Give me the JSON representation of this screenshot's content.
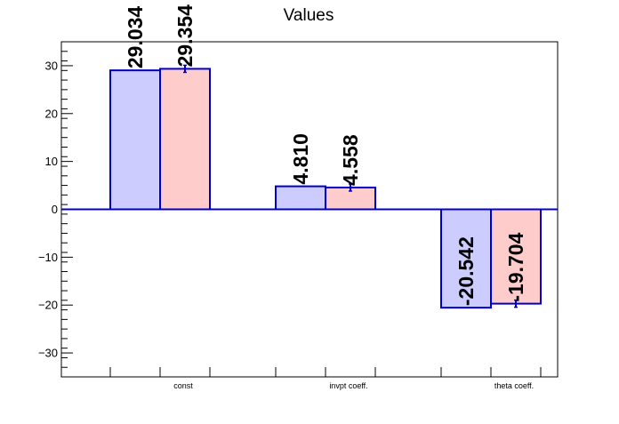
{
  "chart_data": {
    "type": "bar",
    "title": "Values",
    "xlabel": "",
    "ylabel": "",
    "categories": [
      "const",
      "invpt coeff.",
      "theta coeff."
    ],
    "series": [
      {
        "values": [
          29.034,
          4.81,
          -20.542
        ],
        "labels": [
          "29.034",
          "4.810",
          "-20.542"
        ],
        "color": "#ccccff",
        "error_bars": false
      },
      {
        "values": [
          29.354,
          4.558,
          -19.704
        ],
        "labels": [
          "29.354",
          "4.558",
          "-19.704"
        ],
        "color": "#ffcccc",
        "error_bars": true
      }
    ],
    "ylim": [
      -35,
      35
    ],
    "yticks": [
      -30,
      -20,
      -10,
      0,
      10,
      20,
      30
    ],
    "ytick_labels": [
      "−30",
      "−20",
      "−10",
      "0",
      "10",
      "20",
      "30"
    ],
    "bar_edge_color": "#0000cc",
    "grid": false,
    "legend": "none"
  }
}
